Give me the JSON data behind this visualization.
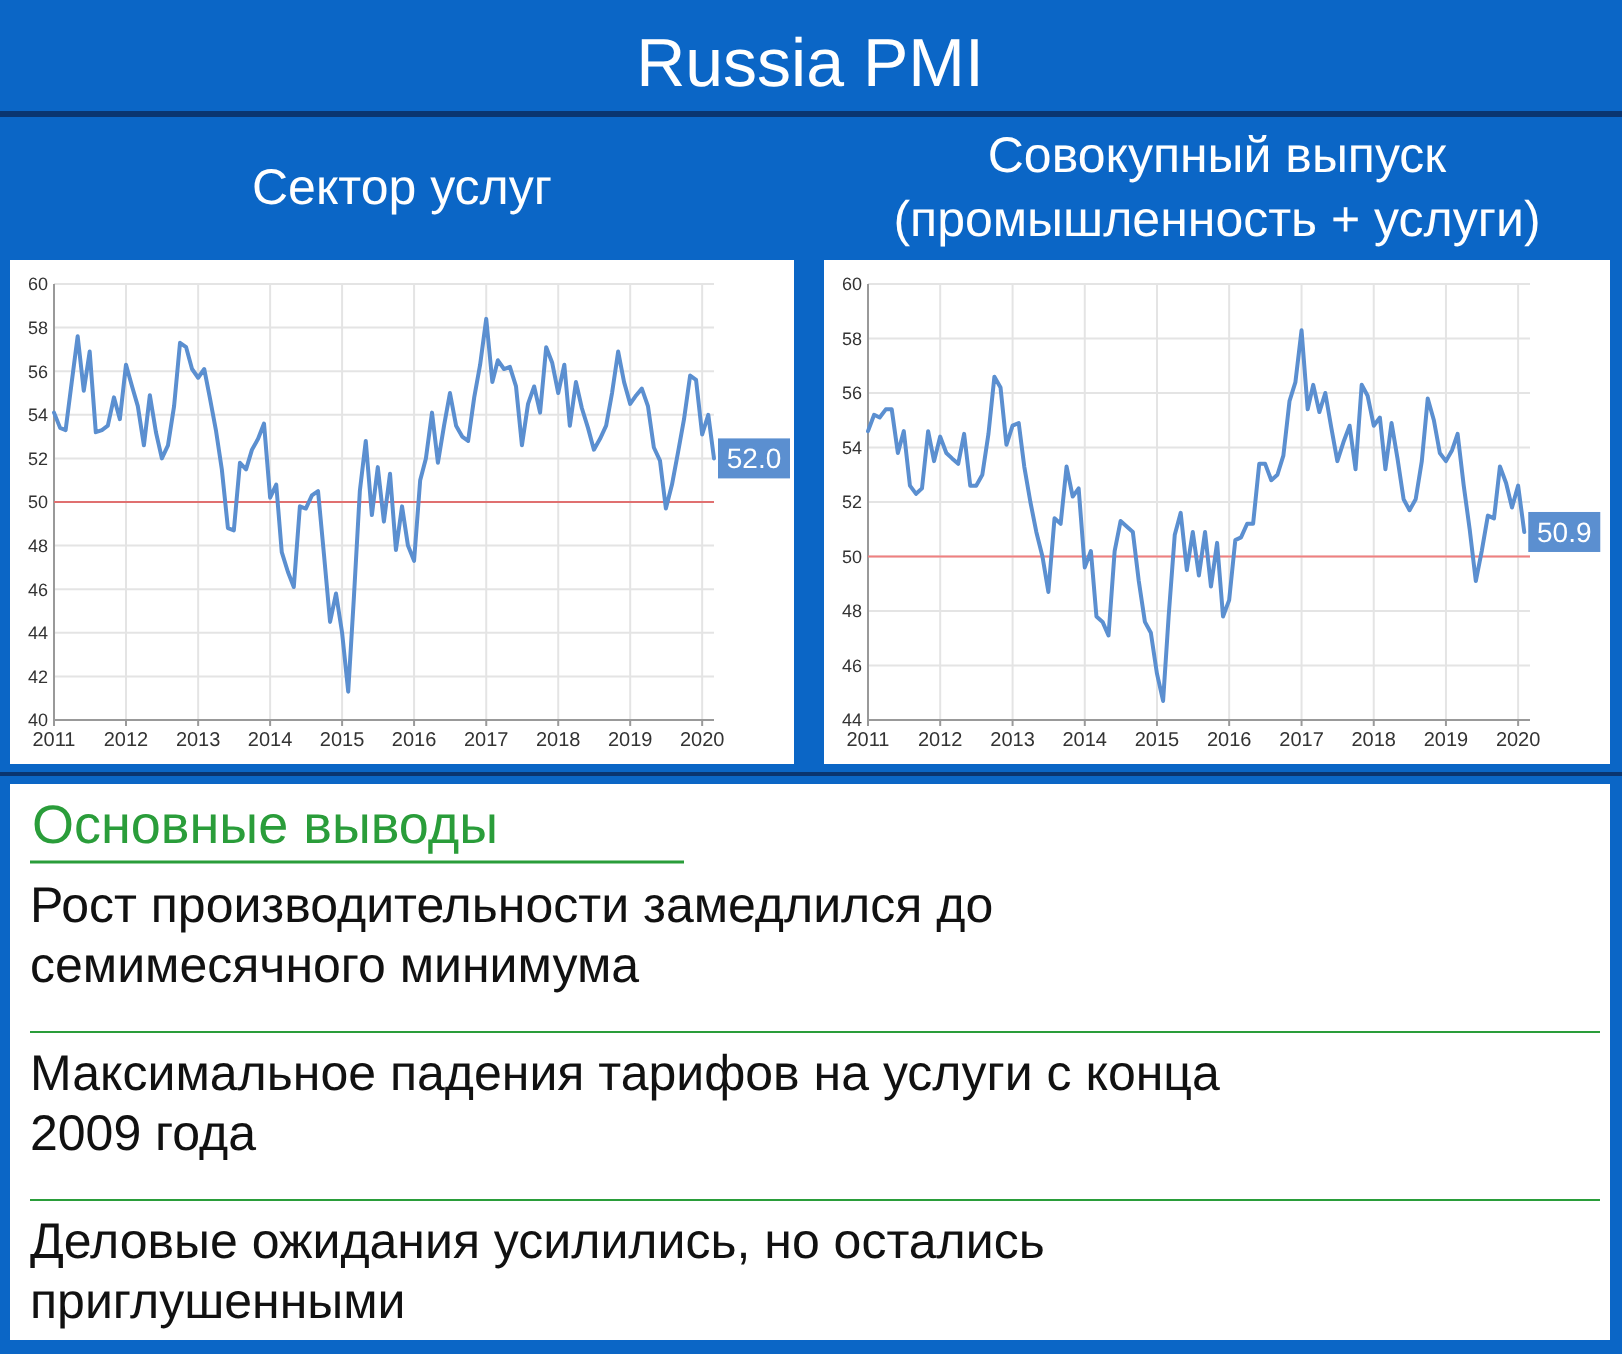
{
  "chart_data": [
    {
      "type": "other",
      "title": "Russia PMI"
    },
    {
      "type": "line",
      "title": "Сектор услуг",
      "x": [
        "2011-01",
        "2011-02",
        "2011-03",
        "2011-04",
        "2011-05",
        "2011-06",
        "2011-07",
        "2011-08",
        "2011-09",
        "2011-10",
        "2011-11",
        "2011-12",
        "2012-01",
        "2012-02",
        "2012-03",
        "2012-04",
        "2012-05",
        "2012-06",
        "2012-07",
        "2012-08",
        "2012-09",
        "2012-10",
        "2012-11",
        "2012-12",
        "2013-01",
        "2013-02",
        "2013-03",
        "2013-04",
        "2013-05",
        "2013-06",
        "2013-07",
        "2013-08",
        "2013-09",
        "2013-10",
        "2013-11",
        "2013-12",
        "2014-01",
        "2014-02",
        "2014-03",
        "2014-04",
        "2014-05",
        "2014-06",
        "2014-07",
        "2014-08",
        "2014-09",
        "2014-10",
        "2014-11",
        "2014-12",
        "2015-01",
        "2015-02",
        "2015-03",
        "2015-04",
        "2015-05",
        "2015-06",
        "2015-07",
        "2015-08",
        "2015-09",
        "2015-10",
        "2015-11",
        "2015-12",
        "2016-01",
        "2016-02",
        "2016-03",
        "2016-04",
        "2016-05",
        "2016-06",
        "2016-07",
        "2016-08",
        "2016-09",
        "2016-10",
        "2016-11",
        "2016-12",
        "2017-01",
        "2017-02",
        "2017-03",
        "2017-04",
        "2017-05",
        "2017-06",
        "2017-07",
        "2017-08",
        "2017-09",
        "2017-10",
        "2017-11",
        "2017-12",
        "2018-01",
        "2018-02",
        "2018-03",
        "2018-04",
        "2018-05",
        "2018-06",
        "2018-07",
        "2018-08",
        "2018-09",
        "2018-10",
        "2018-11",
        "2018-12",
        "2019-01",
        "2019-02",
        "2019-03",
        "2019-04",
        "2019-05",
        "2019-06",
        "2019-07",
        "2019-08",
        "2019-09",
        "2019-10",
        "2019-11",
        "2019-12",
        "2020-01",
        "2020-02",
        "2020-03"
      ],
      "series": [
        {
          "color": "#5b8fd0",
          "values": [
            54.1,
            53.4,
            53.3,
            55.5,
            57.6,
            55.1,
            56.9,
            53.2,
            53.3,
            53.5,
            54.8,
            53.8,
            56.3,
            55.3,
            54.4,
            52.6,
            54.9,
            53.2,
            52.0,
            52.6,
            54.4,
            57.3,
            57.1,
            56.1,
            55.7,
            56.1,
            54.8,
            53.3,
            51.5,
            48.8,
            48.7,
            51.8,
            51.5,
            52.4,
            52.9,
            53.6,
            50.2,
            50.8,
            47.7,
            46.8,
            46.1,
            49.8,
            49.7,
            50.3,
            50.5,
            47.6,
            44.5,
            45.8,
            44.0,
            41.3,
            45.5,
            50.5,
            52.8,
            49.4,
            51.6,
            49.1,
            51.3,
            47.8,
            49.8,
            48.0,
            47.3,
            51.0,
            52.0,
            54.1,
            51.8,
            53.5,
            55.0,
            53.5,
            53.0,
            52.8,
            54.8,
            56.3,
            58.4,
            55.5,
            56.5,
            56.1,
            56.2,
            55.3,
            52.6,
            54.5,
            55.3,
            54.1,
            57.1,
            56.4,
            55.0,
            56.3,
            53.5,
            55.5,
            54.3,
            53.4,
            52.4,
            52.9,
            53.5,
            55.0,
            56.9,
            55.5,
            54.5,
            54.9,
            55.2,
            54.4,
            52.5,
            51.9,
            49.7,
            50.8,
            52.3,
            53.8,
            55.8,
            55.6,
            53.1,
            54.0,
            52.0
          ]
        }
      ],
      "xlim": [
        "2011-01",
        "2020-03"
      ],
      "xticks": [
        {
          "value": "2011",
          "label": "2011"
        },
        {
          "value": "2012",
          "label": "2012"
        },
        {
          "value": "2013",
          "label": "2013"
        },
        {
          "value": "2014",
          "label": "2014"
        },
        {
          "value": "2015",
          "label": "2015"
        },
        {
          "value": "2016",
          "label": "2016"
        },
        {
          "value": "2017",
          "label": "2017"
        },
        {
          "value": "2018",
          "label": "2018"
        },
        {
          "value": "2019",
          "label": "2019"
        },
        {
          "value": "2020",
          "label": "2020"
        }
      ],
      "ylim": [
        40,
        60
      ],
      "yticks": [
        40,
        42,
        44,
        46,
        48,
        50,
        52,
        54,
        56,
        58,
        60
      ],
      "grid": true,
      "ref_lines": [
        {
          "axis": "y",
          "value": 50,
          "color": "#e07070"
        }
      ],
      "annotations": [
        {
          "text": "52.0",
          "x": "2020-03",
          "y": 52.0
        }
      ]
    },
    {
      "type": "line",
      "title": "Совокупный выпуск (промышленность + услуги)",
      "x": [
        "2011-01",
        "2011-02",
        "2011-03",
        "2011-04",
        "2011-05",
        "2011-06",
        "2011-07",
        "2011-08",
        "2011-09",
        "2011-10",
        "2011-11",
        "2011-12",
        "2012-01",
        "2012-02",
        "2012-03",
        "2012-04",
        "2012-05",
        "2012-06",
        "2012-07",
        "2012-08",
        "2012-09",
        "2012-10",
        "2012-11",
        "2012-12",
        "2013-01",
        "2013-02",
        "2013-03",
        "2013-04",
        "2013-05",
        "2013-06",
        "2013-07",
        "2013-08",
        "2013-09",
        "2013-10",
        "2013-11",
        "2013-12",
        "2014-01",
        "2014-02",
        "2014-03",
        "2014-04",
        "2014-05",
        "2014-06",
        "2014-07",
        "2014-08",
        "2014-09",
        "2014-10",
        "2014-11",
        "2014-12",
        "2015-01",
        "2015-02",
        "2015-03",
        "2015-04",
        "2015-05",
        "2015-06",
        "2015-07",
        "2015-08",
        "2015-09",
        "2015-10",
        "2015-11",
        "2015-12",
        "2016-01",
        "2016-02",
        "2016-03",
        "2016-04",
        "2016-05",
        "2016-06",
        "2016-07",
        "2016-08",
        "2016-09",
        "2016-10",
        "2016-11",
        "2016-12",
        "2017-01",
        "2017-02",
        "2017-03",
        "2017-04",
        "2017-05",
        "2017-06",
        "2017-07",
        "2017-08",
        "2017-09",
        "2017-10",
        "2017-11",
        "2017-12",
        "2018-01",
        "2018-02",
        "2018-03",
        "2018-04",
        "2018-05",
        "2018-06",
        "2018-07",
        "2018-08",
        "2018-09",
        "2018-10",
        "2018-11",
        "2018-12",
        "2019-01",
        "2019-02",
        "2019-03",
        "2019-04",
        "2019-05",
        "2019-06",
        "2019-07",
        "2019-08",
        "2019-09",
        "2019-10",
        "2019-11",
        "2019-12",
        "2020-01",
        "2020-02"
      ],
      "series": [
        {
          "color": "#5b8fd0",
          "values": [
            54.6,
            55.2,
            55.1,
            55.4,
            55.4,
            53.8,
            54.6,
            52.6,
            52.3,
            52.5,
            54.6,
            53.5,
            54.4,
            53.8,
            53.6,
            53.4,
            54.5,
            52.6,
            52.6,
            53.0,
            54.5,
            56.6,
            56.2,
            54.1,
            54.8,
            54.9,
            53.3,
            52.0,
            50.9,
            50.0,
            48.7,
            51.4,
            51.2,
            53.3,
            52.2,
            52.5,
            49.6,
            50.2,
            47.8,
            47.6,
            47.1,
            50.2,
            51.3,
            51.1,
            50.9,
            49.1,
            47.6,
            47.2,
            45.7,
            44.7,
            47.8,
            50.8,
            51.6,
            49.5,
            50.9,
            49.3,
            50.9,
            48.9,
            50.5,
            47.8,
            48.4,
            50.6,
            50.7,
            51.2,
            51.2,
            53.4,
            53.4,
            52.8,
            53.0,
            53.7,
            55.7,
            56.4,
            58.3,
            55.4,
            56.3,
            55.3,
            56.0,
            54.7,
            53.5,
            54.2,
            54.8,
            53.2,
            56.3,
            55.9,
            54.8,
            55.1,
            53.2,
            54.9,
            53.6,
            52.1,
            51.7,
            52.1,
            53.5,
            55.8,
            55.0,
            53.8,
            53.5,
            53.9,
            54.5,
            52.6,
            51.0,
            49.1,
            50.2,
            51.5,
            51.4,
            53.3,
            52.7,
            51.8,
            52.6,
            50.9
          ]
        }
      ],
      "xlim": [
        "2011-01",
        "2020-03"
      ],
      "xticks": [
        {
          "value": "2011",
          "label": "2011"
        },
        {
          "value": "2012",
          "label": "2012"
        },
        {
          "value": "2013",
          "label": "2013"
        },
        {
          "value": "2014",
          "label": "2014"
        },
        {
          "value": "2015",
          "label": "2015"
        },
        {
          "value": "2016",
          "label": "2016"
        },
        {
          "value": "2017",
          "label": "2017"
        },
        {
          "value": "2018",
          "label": "2018"
        },
        {
          "value": "2019",
          "label": "2019"
        },
        {
          "value": "2020",
          "label": "2020"
        }
      ],
      "ylim": [
        44,
        60
      ],
      "yticks": [
        44,
        46,
        48,
        50,
        52,
        54,
        56,
        58,
        60
      ],
      "grid": true,
      "ref_lines": [
        {
          "axis": "y",
          "value": 50,
          "color": "#f08080"
        }
      ],
      "annotations": [
        {
          "text": "50.9",
          "x": "2020-02",
          "y": 50.9
        }
      ]
    },
    {
      "type": "other",
      "title": "Основные выводы",
      "annotations": [
        "Рост производительности замедлился до семимесячного минимума",
        "Максимальное падения тарифов на услуги с конца 2009 года",
        "Деловые ожидания усилились, но остались приглушенными"
      ]
    }
  ]
}
